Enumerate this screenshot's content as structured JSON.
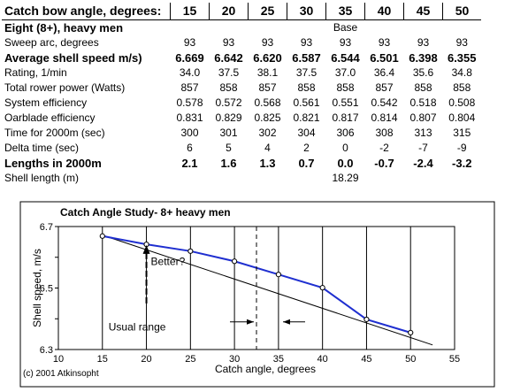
{
  "table": {
    "header_label": "Catch bow angle, degrees:",
    "angles": [
      "15",
      "20",
      "25",
      "30",
      "35",
      "40",
      "45",
      "50"
    ],
    "section_label": "Eight (8+), heavy men",
    "base_label": "Base",
    "rows": [
      {
        "label": "Sweep arc, degrees",
        "bold": false,
        "values": [
          "93",
          "93",
          "93",
          "93",
          "93",
          "93",
          "93",
          "93"
        ]
      },
      {
        "label": "Average shell speed m/s)",
        "bold": true,
        "values": [
          "6.669",
          "6.642",
          "6.620",
          "6.587",
          "6.544",
          "6.501",
          "6.398",
          "6.355"
        ]
      },
      {
        "label": "Rating, 1/min",
        "bold": false,
        "values": [
          "34.0",
          "37.5",
          "38.1",
          "37.5",
          "37.0",
          "36.4",
          "35.6",
          "34.8"
        ]
      },
      {
        "label": "Total rower power (Watts)",
        "bold": false,
        "values": [
          "857",
          "858",
          "857",
          "858",
          "858",
          "857",
          "858",
          "858"
        ]
      },
      {
        "label": "System efficiency",
        "bold": false,
        "values": [
          "0.578",
          "0.572",
          "0.568",
          "0.561",
          "0.551",
          "0.542",
          "0.518",
          "0.508"
        ]
      },
      {
        "label": "Oarblade efficiency",
        "bold": false,
        "values": [
          "0.831",
          "0.829",
          "0.825",
          "0.821",
          "0.817",
          "0.814",
          "0.807",
          "0.804"
        ]
      },
      {
        "label": "Time for 2000m (sec)",
        "bold": false,
        "values": [
          "300",
          "301",
          "302",
          "304",
          "306",
          "308",
          "313",
          "315"
        ]
      },
      {
        "label": "Delta time (sec)",
        "bold": false,
        "values": [
          "6",
          "5",
          "4",
          "2",
          "0",
          "-2",
          "-7",
          "-9"
        ]
      },
      {
        "label": "Lengths in 2000m",
        "bold": true,
        "values": [
          "2.1",
          "1.6",
          "1.3",
          "0.7",
          "0.0",
          "-0.7",
          "-2.4",
          "-3.2"
        ]
      },
      {
        "label": "Shell length (m)",
        "bold": false,
        "values": [
          "",
          "",
          "",
          "",
          "18.29",
          "",
          "",
          ""
        ]
      }
    ]
  },
  "chart_data": {
    "type": "line",
    "title": "Catch Angle Study-  8+ heavy men",
    "xlabel": "Catch angle, degrees",
    "ylabel": "Shell speed, m/s",
    "xlim": [
      10,
      55
    ],
    "ylim": [
      6.3,
      6.7
    ],
    "x_ticks": [
      "10",
      "15",
      "20",
      "25",
      "30",
      "35",
      "40",
      "45",
      "50",
      "55"
    ],
    "y_ticks": [
      "6.3",
      "6.5",
      "6.7"
    ],
    "y_minor_step": 0.1,
    "grid": "vertical",
    "series": [
      {
        "x": [
          15,
          20,
          25,
          30,
          35,
          40,
          45,
          50
        ],
        "y": [
          6.669,
          6.642,
          6.62,
          6.587,
          6.544,
          6.501,
          6.398,
          6.355
        ],
        "color": "#1f2fd0"
      }
    ],
    "trend": {
      "from": [
        15,
        6.672
      ],
      "to": [
        52.5,
        6.315
      ],
      "color": "#000000"
    },
    "annotations": {
      "better_text": "Better?",
      "better_arrow_x": 20,
      "better_arrow_y": [
        6.45,
        6.64
      ],
      "usual_range_text": "Usual range",
      "usual_range_x": 32.5,
      "usual_range_arrow_y": 6.39,
      "copyright": "(c) 2001 Atkinsopht"
    }
  }
}
